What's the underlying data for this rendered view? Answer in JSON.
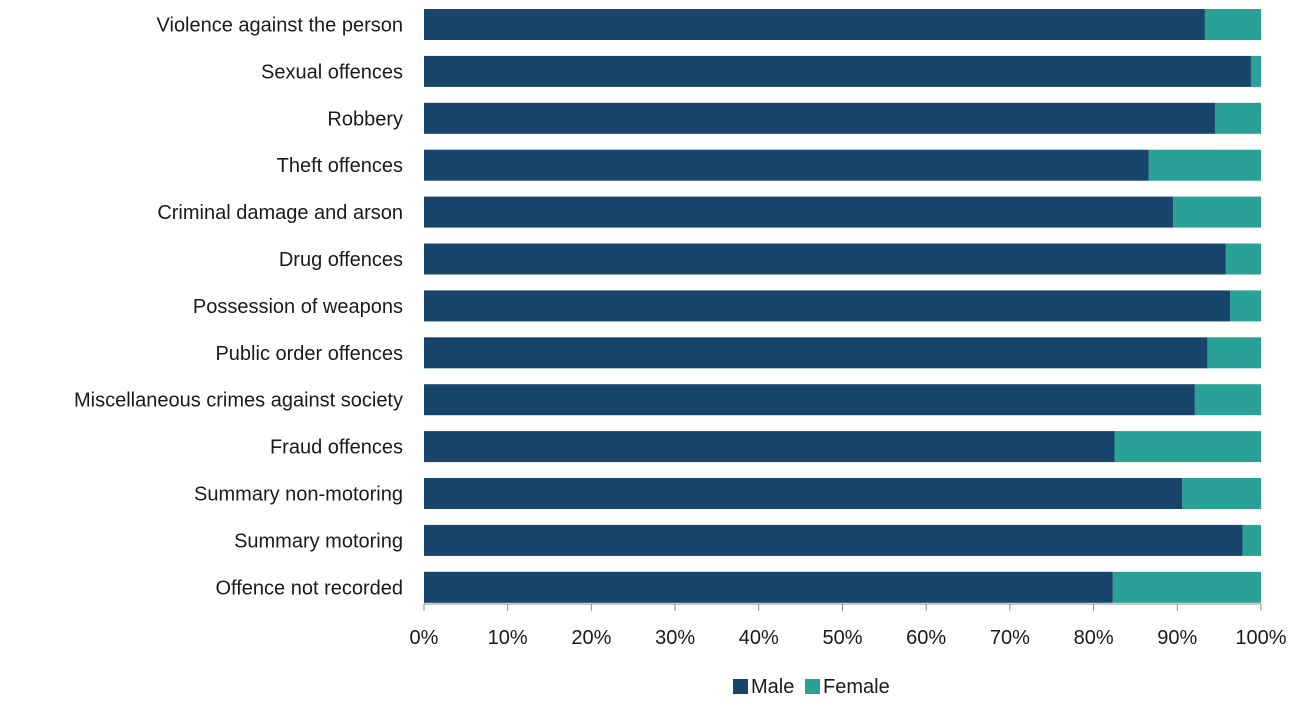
{
  "chart_data": {
    "type": "bar",
    "orientation": "horizontal",
    "stacked": true,
    "percent_scale": true,
    "categories": [
      "Violence against the person",
      "Sexual offences",
      "Robbery",
      "Theft offences",
      "Criminal damage and arson",
      "Drug offences",
      "Possession of weapons",
      "Public order offences",
      "Miscellaneous crimes against society",
      "Fraud offences",
      "Summary non-motoring",
      "Summary motoring",
      "Offence not recorded"
    ],
    "series": [
      {
        "name": "Male",
        "color": "#17456b",
        "values": [
          93.3,
          98.8,
          94.5,
          86.6,
          89.5,
          95.8,
          96.3,
          93.6,
          92.1,
          82.5,
          90.6,
          97.8,
          82.3
        ]
      },
      {
        "name": "Female",
        "color": "#2aa197",
        "values": [
          6.7,
          1.2,
          5.5,
          13.4,
          10.5,
          4.2,
          3.7,
          6.4,
          7.9,
          17.5,
          9.4,
          2.2,
          17.7
        ]
      }
    ],
    "xlim": [
      0,
      100
    ],
    "xticks": [
      "0%",
      "10%",
      "20%",
      "30%",
      "40%",
      "50%",
      "60%",
      "70%",
      "80%",
      "90%",
      "100%"
    ],
    "legend_position": "bottom",
    "grid": false,
    "title": "",
    "xlabel": "",
    "ylabel": ""
  }
}
